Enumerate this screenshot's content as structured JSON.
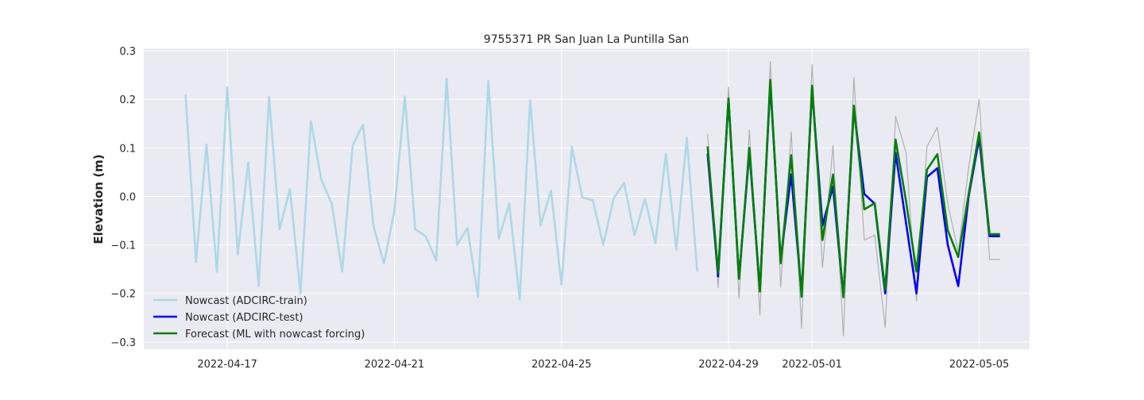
{
  "chart_data": {
    "type": "line",
    "title": "9755371 PR San Juan La Puntilla San",
    "xlabel": "",
    "ylabel": "Elevation (m)",
    "xlim": [
      "2022-04-15T00:00",
      "2022-05-06T05:00"
    ],
    "ylim": [
      -0.315,
      0.305
    ],
    "x_ticks": [
      "2022-04-17",
      "2022-04-21",
      "2022-04-25",
      "2022-04-29",
      "2022-05-01",
      "2022-05-05"
    ],
    "y_ticks": [
      -0.3,
      -0.2,
      -0.1,
      0.0,
      0.1,
      0.2,
      0.3
    ],
    "y_tick_labels": [
      "−0.3",
      "−0.2",
      "−0.1",
      "0.0",
      "0.1",
      "0.2",
      "0.3"
    ],
    "grid": true,
    "legend_position": "lower-left",
    "colors": {
      "background": "#eaeaf2",
      "grid": "#ffffff",
      "train": "#add8e6",
      "test": "#0000ff",
      "forecast": "#008000",
      "observed": "#b0b0b0"
    },
    "series": [
      {
        "name": "Nowcast (ADCIRC-train)",
        "role": "train",
        "x": [
          "2022-04-16T00:00",
          "2022-04-16T06:00",
          "2022-04-16T12:00",
          "2022-04-16T18:00",
          "2022-04-17T00:00",
          "2022-04-17T06:00",
          "2022-04-17T12:00",
          "2022-04-17T18:00",
          "2022-04-18T00:00",
          "2022-04-18T06:00",
          "2022-04-18T12:00",
          "2022-04-18T18:00",
          "2022-04-19T00:00",
          "2022-04-19T06:00",
          "2022-04-19T12:00",
          "2022-04-19T18:00",
          "2022-04-20T00:00",
          "2022-04-20T06:00",
          "2022-04-20T12:00",
          "2022-04-20T18:00",
          "2022-04-21T00:00",
          "2022-04-21T06:00",
          "2022-04-21T12:00",
          "2022-04-21T18:00",
          "2022-04-22T00:00",
          "2022-04-22T06:00",
          "2022-04-22T12:00",
          "2022-04-22T18:00",
          "2022-04-23T00:00",
          "2022-04-23T06:00",
          "2022-04-23T12:00",
          "2022-04-23T18:00",
          "2022-04-24T00:00",
          "2022-04-24T06:00",
          "2022-04-24T12:00",
          "2022-04-24T18:00",
          "2022-04-25T00:00",
          "2022-04-25T06:00",
          "2022-04-25T12:00",
          "2022-04-25T18:00",
          "2022-04-26T00:00",
          "2022-04-26T06:00",
          "2022-04-26T12:00",
          "2022-04-26T18:00",
          "2022-04-27T00:00",
          "2022-04-27T06:00",
          "2022-04-27T12:00",
          "2022-04-27T18:00",
          "2022-04-28T00:00",
          "2022-04-28T06:00"
        ],
        "values": [
          0.21,
          -0.135,
          0.107,
          -0.155,
          0.225,
          -0.12,
          0.07,
          -0.185,
          0.205,
          -0.068,
          0.015,
          -0.2,
          0.155,
          0.035,
          -0.015,
          -0.155,
          0.105,
          0.148,
          -0.062,
          -0.138,
          -0.03,
          0.206,
          -0.068,
          -0.082,
          -0.132,
          0.242,
          -0.1,
          -0.065,
          -0.207,
          0.238,
          -0.087,
          -0.015,
          -0.213,
          0.198,
          -0.06,
          0.012,
          -0.182,
          0.102,
          -0.002,
          -0.008,
          -0.1,
          -0.004,
          0.028,
          -0.08,
          -0.005,
          -0.097,
          0.088,
          -0.11,
          0.121,
          -0.155
        ]
      },
      {
        "name": "Nowcast (ADCIRC-test)",
        "role": "test",
        "x": [
          "2022-04-28T12:00",
          "2022-04-28T18:00",
          "2022-04-29T00:00",
          "2022-04-29T06:00",
          "2022-04-29T12:00",
          "2022-04-29T18:00",
          "2022-04-30T00:00",
          "2022-04-30T06:00",
          "2022-04-30T12:00",
          "2022-04-30T18:00",
          "2022-05-01T00:00",
          "2022-05-01T06:00",
          "2022-05-01T12:00",
          "2022-05-01T18:00",
          "2022-05-02T00:00",
          "2022-05-02T06:00",
          "2022-05-02T12:00",
          "2022-05-02T18:00",
          "2022-05-03T00:00",
          "2022-05-03T06:00",
          "2022-05-03T12:00",
          "2022-05-03T18:00",
          "2022-05-04T00:00",
          "2022-05-04T06:00",
          "2022-05-04T12:00",
          "2022-05-04T18:00",
          "2022-05-05T00:00",
          "2022-05-05T06:00",
          "2022-05-05T12:00"
        ],
        "values": [
          0.088,
          -0.165,
          0.2,
          -0.168,
          0.092,
          -0.193,
          0.232,
          -0.13,
          0.045,
          -0.2,
          0.22,
          -0.06,
          0.02,
          -0.205,
          0.18,
          0.005,
          -0.015,
          -0.2,
          0.09,
          -0.055,
          -0.2,
          0.04,
          0.058,
          -0.1,
          -0.185,
          0.0,
          0.12,
          -0.082,
          -0.082
        ]
      },
      {
        "name": "Forecast (ML with nowcast forcing)",
        "role": "forecast",
        "x": [
          "2022-04-28T12:00",
          "2022-04-28T18:00",
          "2022-04-29T00:00",
          "2022-04-29T06:00",
          "2022-04-29T12:00",
          "2022-04-29T18:00",
          "2022-04-30T00:00",
          "2022-04-30T06:00",
          "2022-04-30T12:00",
          "2022-04-30T18:00",
          "2022-05-01T00:00",
          "2022-05-01T06:00",
          "2022-05-01T12:00",
          "2022-05-01T18:00",
          "2022-05-02T00:00",
          "2022-05-02T06:00",
          "2022-05-02T12:00",
          "2022-05-02T18:00",
          "2022-05-03T00:00",
          "2022-05-03T06:00",
          "2022-05-03T12:00",
          "2022-05-03T18:00",
          "2022-05-04T00:00",
          "2022-05-04T06:00",
          "2022-05-04T12:00",
          "2022-05-04T18:00",
          "2022-05-05T00:00",
          "2022-05-05T06:00",
          "2022-05-05T12:00"
        ],
        "values": [
          0.103,
          -0.158,
          0.202,
          -0.17,
          0.1,
          -0.196,
          0.24,
          -0.138,
          0.085,
          -0.207,
          0.228,
          -0.09,
          0.045,
          -0.208,
          0.187,
          -0.027,
          -0.014,
          -0.192,
          0.117,
          -0.01,
          -0.155,
          0.055,
          0.087,
          -0.07,
          -0.125,
          0.005,
          0.132,
          -0.078,
          -0.078
        ]
      },
      {
        "name": "",
        "role": "observed",
        "x": [
          "2022-04-28T12:00",
          "2022-04-28T18:00",
          "2022-04-29T00:00",
          "2022-04-29T06:00",
          "2022-04-29T12:00",
          "2022-04-29T18:00",
          "2022-04-30T00:00",
          "2022-04-30T06:00",
          "2022-04-30T12:00",
          "2022-04-30T18:00",
          "2022-05-01T00:00",
          "2022-05-01T06:00",
          "2022-05-01T12:00",
          "2022-05-01T18:00",
          "2022-05-02T00:00",
          "2022-05-02T06:00",
          "2022-05-02T12:00",
          "2022-05-02T18:00",
          "2022-05-03T00:00",
          "2022-05-03T06:00",
          "2022-05-03T12:00",
          "2022-05-03T18:00",
          "2022-05-04T00:00",
          "2022-05-04T06:00",
          "2022-05-04T12:00",
          "2022-05-04T18:00",
          "2022-05-05T00:00",
          "2022-05-05T06:00",
          "2022-05-05T12:00"
        ],
        "values": [
          0.128,
          -0.188,
          0.225,
          -0.21,
          0.137,
          -0.245,
          0.278,
          -0.187,
          0.133,
          -0.272,
          0.272,
          -0.147,
          0.105,
          -0.288,
          0.245,
          -0.09,
          -0.08,
          -0.27,
          0.165,
          0.09,
          -0.215,
          0.103,
          0.142,
          -0.015,
          -0.115,
          0.06,
          0.2,
          -0.13,
          -0.13
        ]
      }
    ]
  }
}
